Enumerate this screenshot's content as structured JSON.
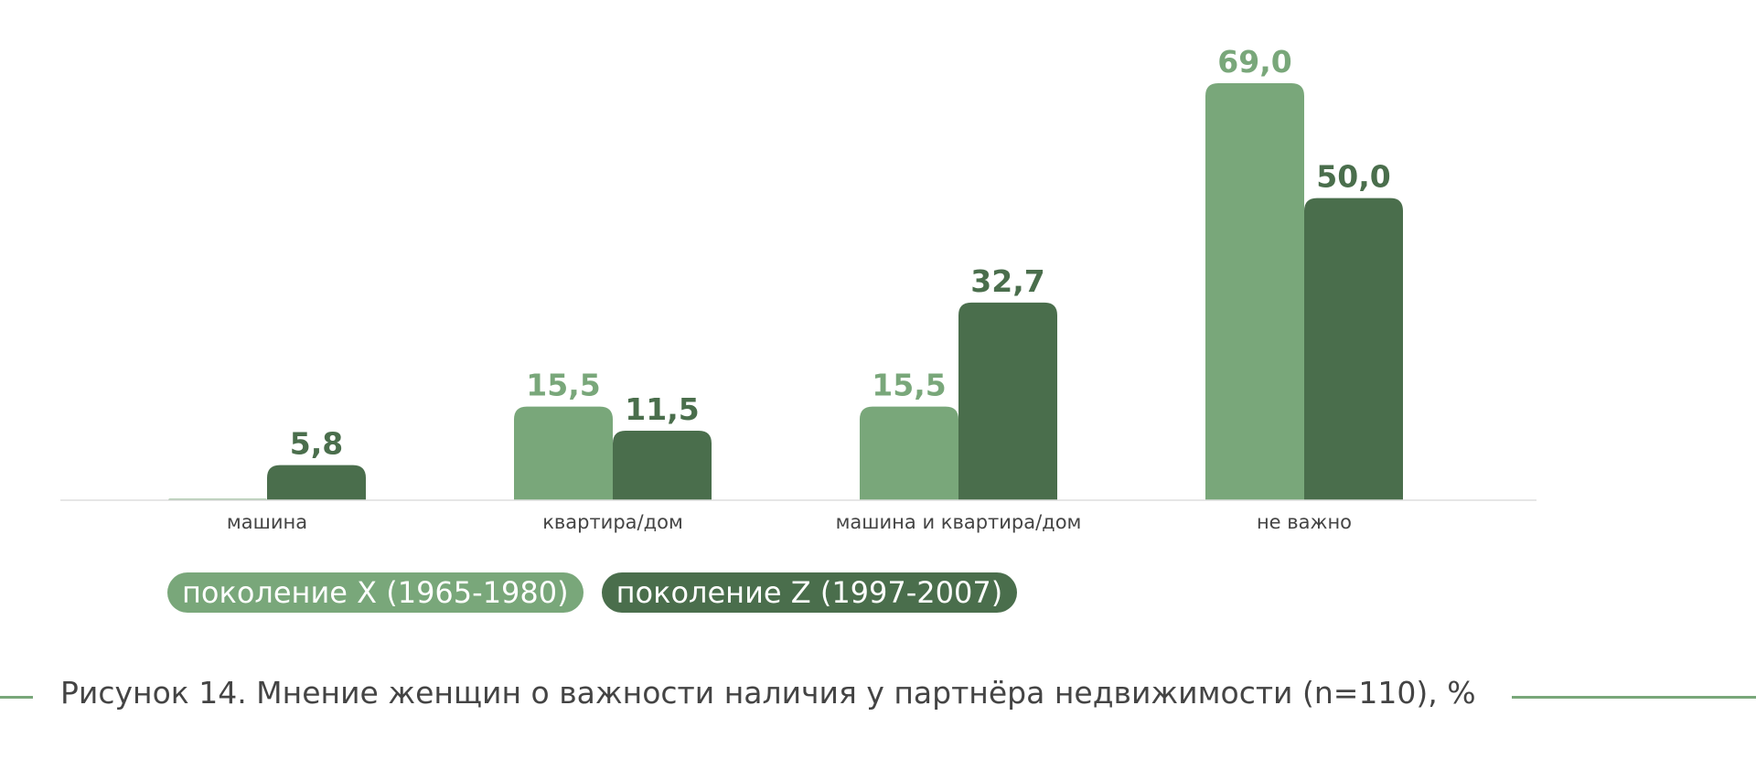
{
  "colors": {
    "series_x": "#79a77a",
    "series_z": "#4a6e4c",
    "baseline": "#dddddd",
    "category_text": "#444444",
    "caption_text": "#444444",
    "caption_rule": "#79a77a"
  },
  "chart_data": {
    "type": "bar",
    "categories": [
      "машина",
      "квартира/дом",
      "машина и квартира/дом",
      "не важно"
    ],
    "series": [
      {
        "name": "поколение X (1965-1980)",
        "values": [
          0,
          15.5,
          15.5,
          69.0
        ],
        "labels": [
          "",
          "15,5",
          "15,5",
          "69,0"
        ]
      },
      {
        "name": "поколение Z (1997-2007)",
        "values": [
          5.8,
          11.5,
          32.7,
          50.0
        ],
        "labels": [
          "5,8",
          "11,5",
          "32,7",
          "50,0"
        ]
      }
    ],
    "title": "",
    "xlabel": "",
    "ylabel": "",
    "ylim": [
      0,
      69.0
    ],
    "grid": false,
    "legend_position": "bottom-left"
  },
  "caption": "Рисунок 14. Мнение женщин о важности наличия у партнёра недвижимости (n=110), %"
}
